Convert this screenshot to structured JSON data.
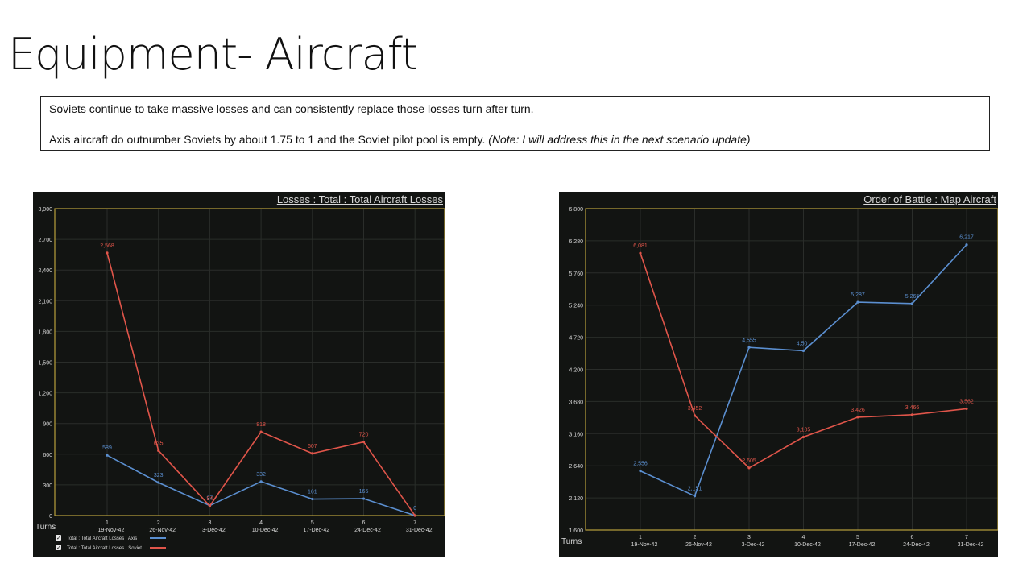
{
  "slide": {
    "title": "Equipment- Aircraft",
    "line1": "Soviets continue to take massive losses and can consistently replace those losses turn after turn.",
    "line2": "Axis aircraft do outnumber  Soviets by about 1.75 to 1 and the Soviet pilot pool is empty.",
    "line2_note": "(Note: I will address this in the next scenario update)"
  },
  "colors": {
    "axis": "#5b8fd0",
    "soviet": "#e0554a",
    "frame": "#b8a13c",
    "text": "#d8d8d8"
  },
  "chart_data": [
    {
      "type": "line",
      "title": "Losses : Total : Total Aircraft Losses",
      "xlabel": "Turns",
      "ylabel": "",
      "x": [
        "1",
        "2",
        "3",
        "4",
        "5",
        "6",
        "7"
      ],
      "x_dates": [
        "19-Nov-42",
        "26-Nov-42",
        "3-Dec-42",
        "10-Dec-42",
        "17-Dec-42",
        "24-Dec-42",
        "31-Dec-42"
      ],
      "ylim": [
        0,
        3000
      ],
      "yticks": [
        0,
        300,
        600,
        900,
        1200,
        1500,
        1800,
        2100,
        2400,
        2700,
        3000
      ],
      "ytick_labels": [
        "0",
        "300",
        "600",
        "900",
        "1,200",
        "1,500",
        "1,800",
        "2,100",
        "2,400",
        "2,700",
        "3,000"
      ],
      "series": [
        {
          "name": "Total : Total Aircraft Losses : Axis",
          "color": "#5b8fd0",
          "values": [
            589,
            323,
            97,
            332,
            161,
            165,
            0
          ],
          "labels": [
            "589",
            "323",
            "97",
            "332",
            "161",
            "165",
            "0"
          ]
        },
        {
          "name": "Total : Total Aircraft Losses : Soviet",
          "color": "#e0554a",
          "values": [
            2568,
            635,
            94,
            818,
            607,
            720,
            0
          ],
          "labels": [
            "2,568",
            "635",
            "94",
            "818",
            "607",
            "720",
            ""
          ]
        }
      ],
      "legend": "bottom-left",
      "grid": true
    },
    {
      "type": "line",
      "title": "Order of Battle : Map Aircraft",
      "xlabel": "Turns",
      "ylabel": "",
      "x": [
        "1",
        "2",
        "3",
        "4",
        "5",
        "6",
        "7"
      ],
      "x_dates": [
        "19-Nov-42",
        "26-Nov-42",
        "3-Dec-42",
        "10-Dec-42",
        "17-Dec-42",
        "24-Dec-42",
        "31-Dec-42"
      ],
      "ylim": [
        1600,
        6800
      ],
      "yticks": [
        1600,
        2120,
        2640,
        3160,
        3680,
        4200,
        4720,
        5240,
        5760,
        6280,
        6800
      ],
      "ytick_labels": [
        "1,600",
        "2,120",
        "2,640",
        "3,160",
        "3,680",
        "4,200",
        "4,720",
        "5,240",
        "5,760",
        "6,280",
        "6,800"
      ],
      "series": [
        {
          "color": "#5b8fd0",
          "values": [
            2556,
            2151,
            4555,
            4501,
            5287,
            5265,
            6217
          ],
          "labels": [
            "2,556",
            "2,151",
            "4,555",
            "4,501",
            "5,287",
            "5,265",
            "6,217"
          ]
        },
        {
          "color": "#e0554a",
          "values": [
            6081,
            3452,
            2605,
            3105,
            3426,
            3466,
            3562
          ],
          "labels": [
            "6,081",
            "3,452",
            "2,605",
            "3,105",
            "3,426",
            "3,466",
            "3,562"
          ]
        }
      ],
      "grid": true
    }
  ]
}
